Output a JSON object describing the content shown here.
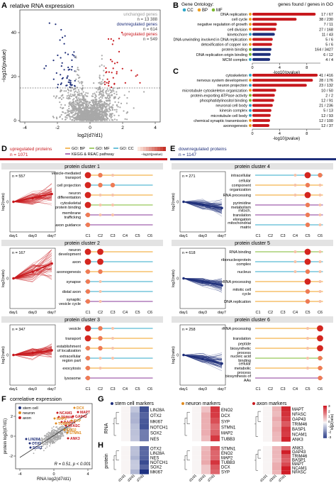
{
  "colors": {
    "up": "#c8191e",
    "down": "#1f2f7a",
    "gray": "#a8a8a8",
    "cc": "#2fa8c9",
    "bp": "#f0a020",
    "mf": "#7cb82f",
    "kegg": "#8a3a9a"
  },
  "panelA": {
    "letter": "A",
    "title": "relative RNA expression",
    "leg_unchanged": "unchanged genes",
    "n_unchanged": "n = 13 388",
    "leg_down": "downregulated genes",
    "n_down": "n = 614",
    "leg_up": "upregulated genes",
    "n_up": "n = 549",
    "xlabel": "log2(d7/d1)",
    "ylabel": "−log10(pvalue)",
    "xticks": [
      "-4",
      "-2",
      "0",
      "2",
      "4"
    ],
    "xtick_vals": [
      -4,
      -2,
      0,
      2,
      4
    ],
    "yticks": [
      "0",
      "20",
      "40"
    ],
    "ytick_vals": [
      0,
      20,
      40
    ],
    "threshold_y": 15
  },
  "panelB": {
    "letter": "B",
    "go_title": "Gene Ontology:",
    "leg_cc": "CC",
    "leg_bp": "BP",
    "leg_mf": "MF",
    "header": "genes found / genes in GO",
    "xlabel": "-log10(pvalue)",
    "xticks": [
      "0",
      "4",
      "8"
    ],
    "xmax": 10,
    "terms": [
      {
        "name": "DNA replication",
        "value": "17 / 67",
        "score": 9.3,
        "cat": "bp"
      },
      {
        "name": "cell cycle",
        "value": "38 / 230",
        "score": 6.5,
        "cat": "bp"
      },
      {
        "name": "negative regulation of growth",
        "value": "7 / 11",
        "score": 3.6,
        "cat": "bp"
      },
      {
        "name": "cell division",
        "value": "27 / 168",
        "score": 3.5,
        "cat": "bp"
      },
      {
        "name": "kinetochore",
        "value": "11 / 43",
        "score": 3.3,
        "cat": "cc"
      },
      {
        "name": "DNA unwinding involved in DNA replication",
        "value": "5 / 6",
        "score": 3.0,
        "cat": "bp"
      },
      {
        "name": "detoxification of copper ion",
        "value": "5 / 6",
        "score": 2.9,
        "cat": "bp"
      },
      {
        "name": "protein binding",
        "value": "164 / 3427",
        "score": 2.8,
        "cat": "mf"
      },
      {
        "name": "DNA replication origin binding",
        "value": "6 / 12",
        "score": 2.7,
        "cat": "mf"
      },
      {
        "name": "MCM complex",
        "value": "4 / 4",
        "score": 2.6,
        "cat": "cc"
      }
    ]
  },
  "panelC": {
    "letter": "C",
    "xlabel": "-log10(pvalue)",
    "xticks": [
      "0",
      "4",
      "8"
    ],
    "xmax": 10,
    "terms": [
      {
        "name": "cytoskeleton",
        "value": "41 / 416",
        "score": 9.6,
        "cat": "cc"
      },
      {
        "name": "nervous system development",
        "value": "28 / 176",
        "score": 8.9,
        "cat": "bp"
      },
      {
        "name": "neuron projection",
        "value": "23 / 132",
        "score": 8.0,
        "cat": "cc"
      },
      {
        "name": "microtubule cytoskeleton organization",
        "value": "10 / 50",
        "score": 3.5,
        "cat": "bp"
      },
      {
        "name": "protein-exporting ATPase activity",
        "value": "2 / 2",
        "score": 3.3,
        "cat": "mf"
      },
      {
        "name": "phosphatidylinositol binding",
        "value": "12 / 91",
        "score": 3.2,
        "cat": "mf"
      },
      {
        "name": "neuronal cell body",
        "value": "21 / 236",
        "score": 3.0,
        "cat": "cc"
      },
      {
        "name": "kinesin complex",
        "value": "5 / 13",
        "score": 2.8,
        "cat": "cc"
      },
      {
        "name": "microtubule cell body",
        "value": "12 / 93",
        "score": 2.7,
        "cat": "cc"
      },
      {
        "name": "chemical synaptic transmission",
        "value": "12 / 100",
        "score": 2.6,
        "cat": "bp"
      },
      {
        "name": "axonogenesis",
        "value": "12 / 37",
        "score": 2.5,
        "cat": "bp"
      }
    ]
  },
  "panelD": {
    "letter": "D",
    "title": "upregulated proteins",
    "n": "n = 1071",
    "leg_bp": "GO: BP",
    "leg_mf": "GO: MF",
    "leg_cc": "GO: CC",
    "leg_kegg": "KEGG & REAC pathway",
    "scale_label": "−log10(pvalue)",
    "ylabel": "log2(ratio)",
    "days": [
      "day1",
      "day3",
      "day7"
    ],
    "clusters_label": [
      "C1",
      "C2",
      "C3",
      "C4",
      "C5",
      "C6"
    ],
    "clusters": [
      {
        "title": "protein cluster 1",
        "n": "n = 557",
        "spread": 2.1,
        "slope": 1.0,
        "terms": [
          {
            "name": "vesicle-mediated transport",
            "cat": "bp",
            "dots": [
              3,
              2,
              1,
              0,
              0,
              0
            ]
          },
          {
            "name": "cell projection",
            "cat": "cc",
            "dots": [
              3,
              2,
              2,
              0,
              0,
              0
            ]
          },
          {
            "name": "neuron differentiation",
            "cat": "bp",
            "dots": [
              3,
              1,
              1,
              0,
              0,
              0
            ]
          },
          {
            "name": "cytoskeletal protein binding",
            "cat": "mf",
            "dots": [
              3,
              1,
              1,
              0,
              0,
              0
            ]
          },
          {
            "name": "membrane trafficking",
            "cat": "kegg",
            "dots": [
              2,
              1,
              1,
              0,
              0,
              0
            ]
          },
          {
            "name": "axon guidance",
            "cat": "kegg",
            "dots": [
              2,
              0,
              0,
              0,
              0,
              0
            ]
          }
        ]
      },
      {
        "title": "protein cluster 2",
        "n": "n = 167",
        "spread": 3.4,
        "slope": 1.9,
        "terms": [
          {
            "name": "neuron development",
            "cat": "bp",
            "dots": [
              3,
              3,
              0,
              0,
              0,
              0
            ]
          },
          {
            "name": "axon",
            "cat": "cc",
            "dots": [
              3,
              3,
              0,
              0,
              0,
              0
            ]
          },
          {
            "name": "axonogenesis",
            "cat": "bp",
            "dots": [
              2,
              2,
              0,
              0,
              0,
              0
            ]
          },
          {
            "name": "synapse",
            "cat": "cc",
            "dots": [
              2,
              1,
              0,
              0,
              0,
              0
            ]
          },
          {
            "name": "distal axon",
            "cat": "cc",
            "dots": [
              2,
              1,
              0,
              0,
              0,
              0
            ]
          },
          {
            "name": "synaptic vesicle cycle",
            "cat": "kegg",
            "dots": [
              2,
              1,
              0,
              0,
              0,
              0
            ]
          }
        ]
      },
      {
        "title": "protein cluster 3",
        "n": "n = 347",
        "spread": 1.6,
        "slope": 0.6,
        "terms": [
          {
            "name": "vesicle",
            "cat": "cc",
            "dots": [
              3,
              2,
              1,
              0,
              0,
              0
            ]
          },
          {
            "name": "transport",
            "cat": "bp",
            "dots": [
              3,
              2,
              1,
              0,
              0,
              0
            ]
          },
          {
            "name": "establishment of localization",
            "cat": "bp",
            "dots": [
              2,
              2,
              1,
              0,
              0,
              0
            ]
          },
          {
            "name": "extracellular region part",
            "cat": "cc",
            "dots": [
              2,
              1,
              1,
              0,
              0,
              0
            ]
          },
          {
            "name": "exocytosis",
            "cat": "bp",
            "dots": [
              2,
              1,
              0,
              0,
              0,
              0
            ]
          },
          {
            "name": "lysosome",
            "cat": "kegg",
            "dots": [
              2,
              0,
              0,
              0,
              0,
              0
            ]
          }
        ]
      }
    ]
  },
  "panelE": {
    "letter": "E",
    "title": "downregulated proteins",
    "n": "n = 1147",
    "ylabel": "log2(ratio)",
    "days": [
      "day1",
      "day3",
      "day7"
    ],
    "clusters_label": [
      "C1",
      "C2",
      "C3",
      "C4",
      "C5",
      "C6"
    ],
    "clusters": [
      {
        "title": "protein cluster 4",
        "n": "n = 271",
        "spread": 1.8,
        "slope": -0.8,
        "terms": [
          {
            "name": "intracellular",
            "cat": "cc",
            "dots": [
              0,
              0,
              0,
              1,
              3,
              2
            ]
          },
          {
            "name": "cellular component organization",
            "cat": "bp",
            "dots": [
              0,
              0,
              0,
              1,
              2,
              1
            ]
          },
          {
            "name": "RNA processing",
            "cat": "bp",
            "dots": [
              0,
              0,
              0,
              1,
              3,
              1
            ]
          },
          {
            "name": "pyrimidine metabolism",
            "cat": "kegg",
            "dots": [
              0,
              0,
              0,
              0,
              2,
              1
            ]
          },
          {
            "name": "mitoch. translation elongation",
            "cat": "kegg",
            "dots": [
              0,
              0,
              0,
              0,
              2,
              1
            ]
          },
          {
            "name": "mitochondrial matrix",
            "cat": "cc",
            "dots": [
              0,
              0,
              0,
              0,
              2,
              1
            ]
          }
        ]
      },
      {
        "title": "protein cluster 5",
        "n": "n = 618",
        "spread": 1.5,
        "slope": -0.9,
        "terms": [
          {
            "name": "RNA binding",
            "cat": "mf",
            "dots": [
              0,
              0,
              0,
              1,
              3,
              1
            ]
          },
          {
            "name": "ribonucleoprotein complex",
            "cat": "cc",
            "dots": [
              0,
              0,
              0,
              1,
              3,
              1
            ]
          },
          {
            "name": "nucleus",
            "cat": "cc",
            "dots": [
              0,
              0,
              0,
              1,
              2,
              1
            ]
          },
          {
            "name": "rRNA processing",
            "cat": "bp",
            "dots": [
              0,
              0,
              0,
              0,
              3,
              1
            ]
          },
          {
            "name": "mitotic cell cycle",
            "cat": "bp",
            "dots": [
              0,
              0,
              0,
              0,
              2,
              1
            ]
          },
          {
            "name": "DNA replication",
            "cat": "bp",
            "dots": [
              0,
              0,
              0,
              0,
              2,
              1
            ]
          }
        ]
      },
      {
        "title": "protein cluster 6",
        "n": "n = 258",
        "spread": 1.7,
        "slope": -1.1,
        "terms": [
          {
            "name": "rRNA processing",
            "cat": "bp",
            "dots": [
              0,
              0,
              0,
              0,
              1,
              3
            ]
          },
          {
            "name": "translation",
            "cat": "bp",
            "dots": [
              0,
              0,
              0,
              0,
              1,
              3
            ]
          },
          {
            "name": "peptide biosynthetic process",
            "cat": "bp",
            "dots": [
              0,
              0,
              0,
              0,
              1,
              3
            ]
          },
          {
            "name": "nucleic acid binding",
            "cat": "mf",
            "dots": [
              0,
              0,
              0,
              0,
              1,
              2
            ]
          },
          {
            "name": "cellular metabolic process",
            "cat": "bp",
            "dots": [
              0,
              0,
              0,
              0,
              1,
              2
            ]
          },
          {
            "name": "biosynthesis of AAs",
            "cat": "kegg",
            "dots": [
              0,
              0,
              0,
              0,
              0,
              2
            ]
          }
        ]
      }
    ]
  },
  "panelF": {
    "letter": "F",
    "title": "correlative expression",
    "leg_stem": "stem cell",
    "leg_neuron": "neuron",
    "leg_axon": "axon",
    "xlabel": "RNA log2(d7/d1)",
    "ylabel": "protein log2(d7/d1)",
    "stat": "R = 0.51, p < 0.001",
    "xticks": [
      "-4",
      "0",
      "4"
    ],
    "yticks": [
      "-2",
      "0",
      "2"
    ],
    "labels": [
      {
        "t": "MAPT",
        "c": "axon"
      },
      {
        "t": "GAP43",
        "c": "axon"
      },
      {
        "t": "NCAM1",
        "c": "axon"
      },
      {
        "t": "TRIM46",
        "c": "axon"
      },
      {
        "t": "BASP1",
        "c": "axon"
      },
      {
        "t": "NFASC",
        "c": "axon"
      },
      {
        "t": "ANK3",
        "c": "axon"
      },
      {
        "t": "DCX",
        "c": "neuron"
      },
      {
        "t": "SYP",
        "c": "neuron"
      },
      {
        "t": "MAP2",
        "c": "neuron"
      },
      {
        "t": "TUBB3",
        "c": "neuron"
      },
      {
        "t": "ENO2",
        "c": "neuron"
      },
      {
        "t": "STMN1",
        "c": "neuron"
      },
      {
        "t": "LIN28A",
        "c": "stem"
      },
      {
        "t": "OTX2",
        "c": "stem"
      },
      {
        "t": "SOX2",
        "c": "stem"
      }
    ]
  },
  "panelG": {
    "letter": "G",
    "row_label": "RNA",
    "stem_title": "stem cell markers",
    "neuron_title": "neuron markers",
    "axon_title": "axon markers",
    "stem": [
      "LIN28A",
      "OTX2",
      "MKI67",
      "NOTCH1",
      "SOX2",
      "NES"
    ],
    "neuron": [
      "ENO2",
      "DCX",
      "SYP",
      "STMN1",
      "MAP2",
      "TUBB3"
    ],
    "axon": [
      "MAPT",
      "NFASC",
      "GAP43",
      "TRIM46",
      "BASP1",
      "NCAM1",
      "ANK3"
    ],
    "scale_label": "log2(ratio)",
    "scale_ticks": [
      "3",
      "2",
      "1",
      "0",
      "-1",
      "-2",
      "-3"
    ]
  },
  "panelH": {
    "letter": "H",
    "row_label": "protein",
    "stem": [
      "OTX2",
      "LIN28A",
      "NES",
      "NOTCH1",
      "SOX2",
      "MKI67"
    ],
    "neuron": [
      "STMN1",
      "ENO2",
      "MAP2",
      "TUBB3",
      "DCX",
      "SYP"
    ],
    "axon": [
      "ANK3",
      "GAP43",
      "TRIM46",
      "BASP1",
      "MAPT",
      "NCAM1",
      "NFASC"
    ],
    "cols": [
      "d1/d1",
      "d3/d1",
      "d7/d1"
    ]
  }
}
